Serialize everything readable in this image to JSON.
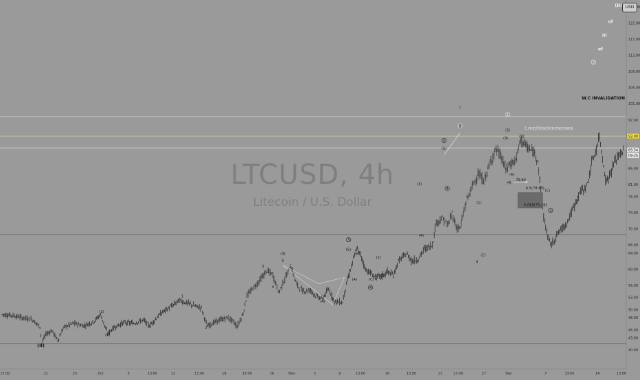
{
  "chart_data": {
    "type": "candlestick",
    "symbol": "LTCUSD",
    "interval": "4h",
    "title": "LTCUSD, 4h",
    "subtitle": "Litecoin / U.S. Dollar",
    "currency": "USD",
    "ylim": [
      38,
      125
    ],
    "yticks": [
      "125.00",
      "121.00",
      "117.00",
      "113.00",
      "109.00",
      "105.00",
      "101.00",
      "97.00",
      "93.00",
      "89.00",
      "85.00",
      "81.00",
      "78.00",
      "74.00",
      "70.00",
      "66.00",
      "64.00",
      "60.00",
      "56.00",
      "53.00",
      "50.00",
      "48.00",
      "45.00",
      "43.00",
      "40.00"
    ],
    "ytick_values": [
      125,
      121,
      117,
      113,
      109,
      105,
      101,
      97,
      93,
      89,
      85,
      81,
      78,
      74,
      70,
      66,
      64,
      60,
      56,
      53,
      50,
      48,
      45,
      43,
      40
    ],
    "xticks": [
      "13:00",
      "21",
      "25",
      "Oct",
      "5",
      "13:00",
      "12",
      "13:00",
      "19",
      "13:00",
      "26",
      "Nov",
      "5",
      "9",
      "13:00",
      "16",
      "13:00",
      "23",
      "13:00",
      "27",
      "Dec",
      "7",
      "13:00",
      "14",
      "13:00"
    ],
    "xtick_index": [
      3,
      44,
      73,
      99,
      127,
      151,
      172,
      198,
      223,
      246,
      271,
      291,
      314,
      339,
      360,
      387,
      411,
      440,
      458,
      484,
      509,
      546,
      570,
      598,
      622
    ],
    "price_labels": [
      {
        "text": "93.00",
        "value": 93.0,
        "highlight": true
      },
      {
        "text": "89.54",
        "value": 89.54,
        "highlight": false
      },
      {
        "text": "09:25",
        "value": 88.2,
        "highlight": false
      }
    ],
    "hlines": [
      {
        "value": 97.8,
        "color": "#c9c9c9"
      },
      {
        "value": 93.0,
        "color": "#d9d9a0"
      },
      {
        "value": 90.0,
        "color": "#c9c9c9"
      },
      {
        "value": 68.6,
        "color": "#666666"
      },
      {
        "value": 41.6,
        "color": "#666666"
      }
    ],
    "keypoints": [
      [
        0,
        48.8
      ],
      [
        10,
        48.6
      ],
      [
        20,
        48.0
      ],
      [
        30,
        47.6
      ],
      [
        38,
        45.8
      ],
      [
        40,
        41.7
      ],
      [
        44,
        43.9
      ],
      [
        50,
        44.8
      ],
      [
        56,
        42.4
      ],
      [
        62,
        45.6
      ],
      [
        72,
        46.6
      ],
      [
        82,
        46.0
      ],
      [
        92,
        47.0
      ],
      [
        99,
        48.8
      ],
      [
        106,
        44.0
      ],
      [
        112,
        45.5
      ],
      [
        122,
        46.8
      ],
      [
        132,
        46.6
      ],
      [
        142,
        47.4
      ],
      [
        148,
        46.0
      ],
      [
        160,
        49.2
      ],
      [
        170,
        50.8
      ],
      [
        178,
        52.3
      ],
      [
        190,
        51.2
      ],
      [
        200,
        50.4
      ],
      [
        206,
        45.9
      ],
      [
        216,
        47.2
      ],
      [
        226,
        48.0
      ],
      [
        232,
        47.2
      ],
      [
        236,
        45.8
      ],
      [
        242,
        49.0
      ],
      [
        246,
        53.5
      ],
      [
        256,
        56.4
      ],
      [
        266,
        59.6
      ],
      [
        272,
        58.6
      ],
      [
        278,
        54.2
      ],
      [
        282,
        56.5
      ],
      [
        290,
        60.9
      ],
      [
        296,
        56.2
      ],
      [
        302,
        54.6
      ],
      [
        310,
        54.8
      ],
      [
        316,
        53.2
      ],
      [
        322,
        52.8
      ],
      [
        328,
        55.0
      ],
      [
        332,
        53.0
      ],
      [
        334,
        52.0
      ],
      [
        342,
        51.8
      ],
      [
        346,
        56.4
      ],
      [
        352,
        61.6
      ],
      [
        356,
        65.2
      ],
      [
        360,
        63.6
      ],
      [
        365,
        60.0
      ],
      [
        370,
        59.0
      ],
      [
        375,
        58.0
      ],
      [
        382,
        58.4
      ],
      [
        387,
        59.4
      ],
      [
        393,
        58.5
      ],
      [
        398,
        62.0
      ],
      [
        406,
        63.8
      ],
      [
        412,
        62.0
      ],
      [
        418,
        62.5
      ],
      [
        424,
        65.0
      ],
      [
        432,
        66.0
      ],
      [
        436,
        71.5
      ],
      [
        442,
        72.6
      ],
      [
        448,
        71.0
      ],
      [
        452,
        74.0
      ],
      [
        456,
        70.5
      ],
      [
        460,
        70.2
      ],
      [
        466,
        76.6
      ],
      [
        472,
        80.4
      ],
      [
        478,
        83.5
      ],
      [
        484,
        81.8
      ],
      [
        490,
        86.2
      ],
      [
        496,
        89.8
      ],
      [
        502,
        87.5
      ],
      [
        506,
        84.5
      ],
      [
        510,
        86.0
      ],
      [
        516,
        87.0
      ],
      [
        521,
        92.1
      ],
      [
        528,
        90.0
      ],
      [
        534,
        89.0
      ],
      [
        538,
        87.2
      ],
      [
        540,
        82.0
      ],
      [
        544,
        73.0
      ],
      [
        548,
        68.0
      ],
      [
        552,
        66.0
      ],
      [
        556,
        68.0
      ],
      [
        560,
        69.5
      ],
      [
        566,
        71.0
      ],
      [
        570,
        73.0
      ],
      [
        576,
        76.4
      ],
      [
        580,
        79.0
      ],
      [
        584,
        79.8
      ],
      [
        588,
        81.0
      ],
      [
        592,
        86.2
      ],
      [
        596,
        89.0
      ],
      [
        600,
        92.8
      ],
      [
        604,
        86.0
      ],
      [
        606,
        81.8
      ],
      [
        610,
        83.0
      ],
      [
        614,
        86.0
      ],
      [
        618,
        87.8
      ],
      [
        624,
        89.5
      ]
    ],
    "wave_labels": [
      {
        "text": "(II)",
        "i": 39,
        "v": 40.7,
        "circled": false,
        "bold": true
      },
      {
        "text": "(1)",
        "i": 100,
        "v": 49.2,
        "circled": false,
        "bold": false
      },
      {
        "text": "(2)",
        "i": 106,
        "v": 43.4,
        "circled": false,
        "bold": false
      },
      {
        "text": "1",
        "i": 181,
        "v": 53.0,
        "circled": false,
        "bold": false
      },
      {
        "text": "2",
        "i": 205,
        "v": 45.3,
        "circled": false,
        "bold": false
      },
      {
        "text": "3",
        "i": 262,
        "v": 60.4,
        "circled": false,
        "bold": false
      },
      {
        "text": "4",
        "i": 272,
        "v": 55.3,
        "circled": false,
        "bold": false
      },
      {
        "text": "5",
        "i": 282,
        "v": 61.9,
        "circled": false,
        "bold": false
      },
      {
        "text": "(3)",
        "i": 282,
        "v": 63.6,
        "circled": false,
        "bold": false
      },
      {
        "text": "(4)",
        "i": 322,
        "v": 51.8,
        "circled": false,
        "bold": false
      },
      {
        "text": "(5)",
        "i": 348,
        "v": 64.6,
        "circled": false,
        "bold": false
      },
      {
        "text": "3",
        "i": 348,
        "v": 67.0,
        "circled": true,
        "bold": false
      },
      {
        "text": "(B)",
        "i": 357,
        "v": 63.6,
        "circled": false,
        "bold": false
      },
      {
        "text": "(1)",
        "i": 378,
        "v": 62.6,
        "circled": false,
        "bold": false
      },
      {
        "text": "(A)",
        "i": 354,
        "v": 57.2,
        "circled": false,
        "bold": false
      },
      {
        "text": "(C)",
        "i": 371,
        "v": 57.2,
        "circled": false,
        "bold": false
      },
      {
        "text": "(2)",
        "i": 382,
        "v": 58.1,
        "circled": false,
        "bold": false
      },
      {
        "text": "4",
        "i": 370,
        "v": 55.2,
        "circled": true,
        "bold": false
      },
      {
        "text": "(3)",
        "i": 419,
        "v": 80.8,
        "circled": false,
        "bold": false
      },
      {
        "text": "(4)",
        "i": 421,
        "v": 68.1,
        "circled": false,
        "bold": false
      },
      {
        "text": "(5)",
        "i": 444,
        "v": 89.6,
        "circled": false,
        "bold": false
      },
      {
        "text": "5",
        "i": 444,
        "v": 91.6,
        "circled": true,
        "bold": false
      },
      {
        "text": "4",
        "i": 447,
        "v": 79.7,
        "circled": true,
        "bold": false
      },
      {
        "text": "2",
        "i": 460,
        "v": 95.2,
        "circled": true,
        "bold": false
      },
      {
        "text": "I",
        "i": 460,
        "v": 99.8,
        "circled": false,
        "bold": false
      },
      {
        "text": "(1)",
        "i": 479,
        "v": 76.2,
        "circled": false,
        "bold": false
      },
      {
        "text": "(2)",
        "i": 483,
        "v": 63.2,
        "circled": false,
        "bold": false
      },
      {
        "text": "II",
        "i": 477,
        "v": 61.5,
        "circled": false,
        "bold": false
      },
      {
        "text": "(3)",
        "i": 506,
        "v": 92.2,
        "circled": false,
        "bold": false
      },
      {
        "text": "(5)",
        "i": 508,
        "v": 94.2,
        "circled": false,
        "bold": false
      },
      {
        "text": "1",
        "i": 508,
        "v": 98.0,
        "circled": true,
        "bold": false
      },
      {
        "text": "(B)",
        "i": 522,
        "v": 92.6,
        "circled": false,
        "bold": false
      },
      {
        "text": "(A)",
        "i": 512,
        "v": 83.2,
        "circled": false,
        "bold": false
      },
      {
        "text": "(4)",
        "i": 509,
        "v": 81.2,
        "circled": false,
        "bold": false
      },
      {
        "text": "(C)",
        "i": 548,
        "v": 79.2,
        "circled": false,
        "bold": false
      },
      {
        "text": "2",
        "i": 551,
        "v": 74.3,
        "circled": true,
        "bold": false
      },
      {
        "text": "3",
        "i": 594,
        "v": 111.0,
        "circled": true,
        "bold": false
      },
      {
        "text": "of",
        "i": 601,
        "v": 114.2,
        "circled": false,
        "bold": true
      },
      {
        "text": "iii",
        "i": 605,
        "v": 117.6,
        "circled": false,
        "bold": true
      },
      {
        "text": "of",
        "i": 611,
        "v": 121.0,
        "circled": false,
        "bold": true
      },
      {
        "text": "(III)",
        "i": 620,
        "v": 125.0,
        "circled": false,
        "bold": true
      }
    ],
    "fib_levels": [
      {
        "text": "79.84",
        "i": 516,
        "v": 81.8
      },
      {
        "text": "0.5(78.65)",
        "i": 526,
        "v": 79.8
      },
      {
        "text": "0.618(75.26)",
        "i": 524,
        "v": 75.6
      }
    ],
    "note_label": "t.me/blackmexexwa",
    "invalidation_label": "W.C INVALIDATION"
  }
}
